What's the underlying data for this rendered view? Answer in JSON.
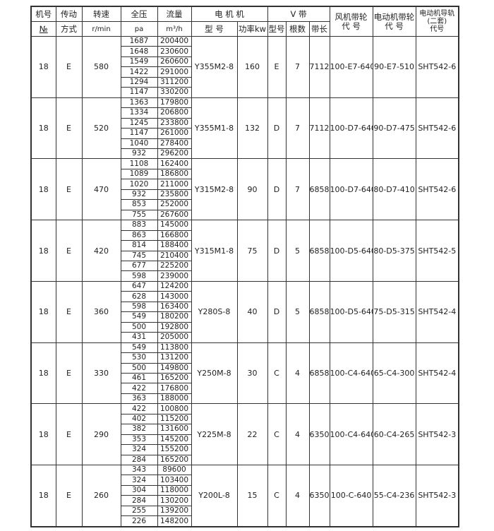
{
  "header": {
    "machine_no": "机号",
    "machine_no_sub": "№",
    "drive": "传动",
    "drive_sub": "方式",
    "speed": "转速",
    "speed_unit": "r/min",
    "pressure": "全压",
    "pressure_unit": "pa",
    "flow": "流量",
    "flow_unit": "m³/h",
    "motor": "电 机 机",
    "motor_model": "型 号",
    "motor_power": "功率kw",
    "vbelt": "V 带",
    "belt_type": "型号",
    "belt_count": "根数",
    "belt_length": "带长",
    "fan_pulley": "风机带轮",
    "fan_pulley_sub": "代 号",
    "motor_pulley": "电动机带轮",
    "motor_pulley_sub": "代 号",
    "rail": "电动机导轨",
    "rail_sub1": "(二套)",
    "rail_sub2": "代号"
  },
  "groups": [
    {
      "no": "18",
      "drive": "E",
      "speed": "580",
      "pressures": [
        "1687",
        "1648",
        "1549",
        "1422",
        "1294",
        "1147"
      ],
      "flows": [
        "200400",
        "230600",
        "260600",
        "291000",
        "311200",
        "330200"
      ],
      "motor": "Y355M2-8",
      "power": "160",
      "belt_type": "E",
      "belt_count": "7",
      "belt_length": "7112",
      "fan_pulley": "100-E7-640",
      "motor_pulley": "90-E7-510",
      "rail": "SHT542-6"
    },
    {
      "no": "18",
      "drive": "E",
      "speed": "520",
      "pressures": [
        "1363",
        "1334",
        "1245",
        "1147",
        "1040",
        "932"
      ],
      "flows": [
        "179800",
        "206800",
        "233800",
        "261000",
        "278400",
        "296200"
      ],
      "motor": "Y355M1-8",
      "power": "132",
      "belt_type": "D",
      "belt_count": "7",
      "belt_length": "7112",
      "fan_pulley": "100-D7-640",
      "motor_pulley": "90-D7-475",
      "rail": "SHT542-6"
    },
    {
      "no": "18",
      "drive": "E",
      "speed": "470",
      "pressures": [
        "1108",
        "1089",
        "1020",
        "932",
        "853",
        "755"
      ],
      "flows": [
        "162400",
        "186800",
        "211000",
        "235800",
        "252000",
        "267600"
      ],
      "motor": "Y315M2-8",
      "power": "90",
      "belt_type": "D",
      "belt_count": "7",
      "belt_length": "6858",
      "fan_pulley": "100-D7-640",
      "motor_pulley": "80-D7-410",
      "rail": "SHT542-6"
    },
    {
      "no": "18",
      "drive": "E",
      "speed": "420",
      "pressures": [
        "883",
        "863",
        "814",
        "745",
        "677",
        "598"
      ],
      "flows": [
        "145000",
        "166800",
        "188400",
        "210400",
        "225200",
        "239000"
      ],
      "motor": "Y315M1-8",
      "power": "75",
      "belt_type": "D",
      "belt_count": "5",
      "belt_length": "6858",
      "fan_pulley": "100-D5-640",
      "motor_pulley": "80-D5-375",
      "rail": "SHT542-5"
    },
    {
      "no": "18",
      "drive": "E",
      "speed": "360",
      "pressures": [
        "647",
        "628",
        "598",
        "549",
        "500",
        "431"
      ],
      "flows": [
        "124200",
        "143000",
        "163400",
        "180200",
        "192800",
        "205000"
      ],
      "motor": "Y280S-8",
      "power": "40",
      "belt_type": "D",
      "belt_count": "5",
      "belt_length": "6858",
      "fan_pulley": "100-D5-640",
      "motor_pulley": "75-D5-315",
      "rail": "SHT542-4"
    },
    {
      "no": "18",
      "drive": "E",
      "speed": "330",
      "pressures": [
        "549",
        "530",
        "500",
        "461",
        "422",
        "363"
      ],
      "flows": [
        "113800",
        "131200",
        "149800",
        "165200",
        "176800",
        "188000"
      ],
      "motor": "Y250M-8",
      "power": "30",
      "belt_type": "C",
      "belt_count": "4",
      "belt_length": "6858",
      "fan_pulley": "100-C4-640",
      "motor_pulley": "65-C4-300",
      "rail": "SHT542-4"
    },
    {
      "no": "18",
      "drive": "E",
      "speed": "290",
      "pressures": [
        "422",
        "402",
        "382",
        "353",
        "324",
        "284"
      ],
      "flows": [
        "100800",
        "115200",
        "131600",
        "145200",
        "155200",
        "165200"
      ],
      "motor": "Y225M-8",
      "power": "22",
      "belt_type": "C",
      "belt_count": "4",
      "belt_length": "6350",
      "fan_pulley": "100-C4-640",
      "motor_pulley": "60-C4-265",
      "rail": "SHT542-3"
    },
    {
      "no": "18",
      "drive": "E",
      "speed": "260",
      "pressures": [
        "343",
        "324",
        "304",
        "284",
        "255",
        "226"
      ],
      "flows": [
        "89600",
        "103400",
        "118000",
        "130200",
        "139200",
        "148200"
      ],
      "motor": "Y200L-8",
      "power": "15",
      "belt_type": "C",
      "belt_count": "4",
      "belt_length": "6350",
      "fan_pulley": "100-C-640",
      "motor_pulley": "55-C4-236",
      "rail": "SHT542-3"
    }
  ]
}
